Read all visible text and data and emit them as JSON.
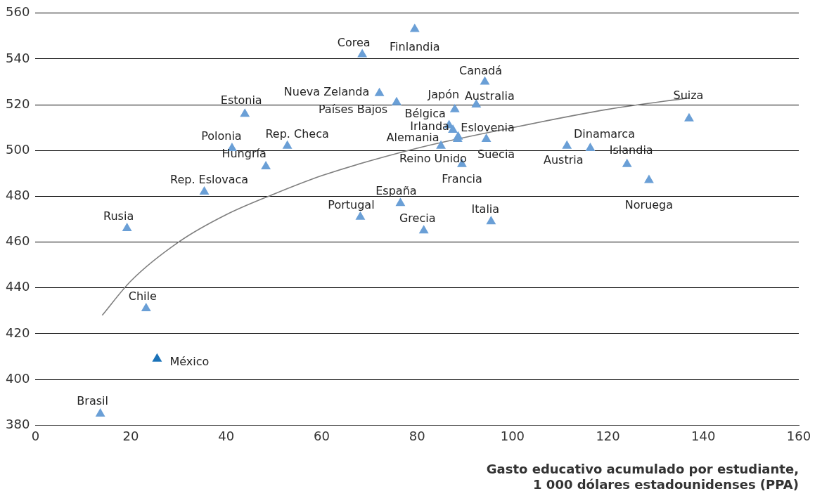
{
  "chart_data": {
    "type": "scatter",
    "xlabel": "Gasto educativo acumulado por estudiante,\n1 000 dólares estadounidenses (PPA)",
    "xlim": [
      0,
      160
    ],
    "xticks": [
      0,
      20,
      40,
      60,
      80,
      100,
      120,
      140,
      160
    ],
    "ylim": [
      380,
      560
    ],
    "yticks": [
      380,
      400,
      420,
      440,
      460,
      480,
      500,
      520,
      540,
      560
    ],
    "grid": "y",
    "legend": false,
    "series": [
      {
        "marker": "triangle",
        "color": "#6a9fd6",
        "x": [
          79.5,
          68.5,
          94.2,
          72.1,
          75.7,
          92.4,
          87.9,
          43.9,
          137,
          86.7,
          87.5,
          88.6,
          85,
          94.5,
          41.2,
          52.8,
          111.4,
          116.3,
          88.5,
          89.4,
          124,
          48.3,
          128.6,
          35.4,
          76.5,
          68.1,
          95.5,
          19.2,
          81.4,
          23.2,
          25.5,
          13.6
        ],
        "values": [
          553,
          542,
          530,
          525,
          521,
          520,
          518,
          516,
          514,
          511,
          509,
          506,
          502,
          505,
          501,
          502,
          502,
          501,
          505,
          494,
          494,
          493,
          487,
          482,
          477,
          471,
          469,
          466,
          465,
          431,
          409,
          385
        ],
        "colors": [
          "#6a9fd6",
          "#6a9fd6",
          "#6a9fd6",
          "#6a9fd6",
          "#6a9fd6",
          "#6a9fd6",
          "#6a9fd6",
          "#6a9fd6",
          "#6a9fd6",
          "#6a9fd6",
          "#6a9fd6",
          "#6a9fd6",
          "#6a9fd6",
          "#6a9fd6",
          "#6a9fd6",
          "#6a9fd6",
          "#6a9fd6",
          "#6a9fd6",
          "#6a9fd6",
          "#6a9fd6",
          "#6a9fd6",
          "#6a9fd6",
          "#6a9fd6",
          "#6a9fd6",
          "#6a9fd6",
          "#6a9fd6",
          "#6a9fd6",
          "#6a9fd6",
          "#6a9fd6",
          "#6a9fd6",
          "#1a72b8",
          "#6a9fd6"
        ]
      },
      {
        "type": "line",
        "marker": "none",
        "line_style": "solid",
        "color": "#7f7f7f",
        "x": [
          14,
          20,
          30,
          40,
          50,
          60,
          80,
          100,
          120,
          137
        ],
        "values": [
          428,
          443,
          460,
          472,
          481,
          489,
          501,
          510,
          518,
          523
        ]
      }
    ],
    "annotations": [
      {
        "text": "Finlandia",
        "x": 79.5,
        "y": 553
      },
      {
        "text": "Corea",
        "x": 68.5,
        "y": 542
      },
      {
        "text": "Canadá",
        "x": 94.2,
        "y": 530
      },
      {
        "text": "Nueva Zelanda",
        "x": 72.1,
        "y": 525
      },
      {
        "text": "Países Bajos",
        "x": 75.7,
        "y": 521
      },
      {
        "text": "Australia",
        "x": 92.4,
        "y": 520
      },
      {
        "text": "Japón",
        "x": 87.9,
        "y": 518
      },
      {
        "text": "Estonia",
        "x": 43.9,
        "y": 516
      },
      {
        "text": "Suiza",
        "x": 137,
        "y": 514
      },
      {
        "text": "Bélgica",
        "x": 86.7,
        "y": 511
      },
      {
        "text": "Irlanda",
        "x": 87.5,
        "y": 509
      },
      {
        "text": "Eslovenia",
        "x": 88.6,
        "y": 506
      },
      {
        "text": "Alemania",
        "x": 85,
        "y": 502
      },
      {
        "text": "Suecia",
        "x": 94.5,
        "y": 505
      },
      {
        "text": "Polonia",
        "x": 41.2,
        "y": 501
      },
      {
        "text": "Rep. Checa",
        "x": 52.8,
        "y": 502
      },
      {
        "text": "Austria",
        "x": 111.4,
        "y": 502
      },
      {
        "text": "Dinamarca",
        "x": 116.3,
        "y": 501
      },
      {
        "text": "Reino Unido",
        "x": 88.5,
        "y": 505
      },
      {
        "text": "Francia",
        "x": 89.4,
        "y": 494
      },
      {
        "text": "Islandia",
        "x": 124,
        "y": 494
      },
      {
        "text": "Hungría",
        "x": 48.3,
        "y": 493
      },
      {
        "text": "Noruega",
        "x": 128.6,
        "y": 487
      },
      {
        "text": "Rep. Eslovaca",
        "x": 35.4,
        "y": 482
      },
      {
        "text": "España",
        "x": 76.5,
        "y": 477
      },
      {
        "text": "Portugal",
        "x": 68.1,
        "y": 471
      },
      {
        "text": "Italia",
        "x": 95.5,
        "y": 469
      },
      {
        "text": "Rusia",
        "x": 19.2,
        "y": 466
      },
      {
        "text": "Grecia",
        "x": 81.4,
        "y": 465
      },
      {
        "text": "Chile",
        "x": 23.2,
        "y": 431
      },
      {
        "text": "México",
        "x": 25.5,
        "y": 409
      },
      {
        "text": "Brasil",
        "x": 13.6,
        "y": 385
      }
    ]
  }
}
